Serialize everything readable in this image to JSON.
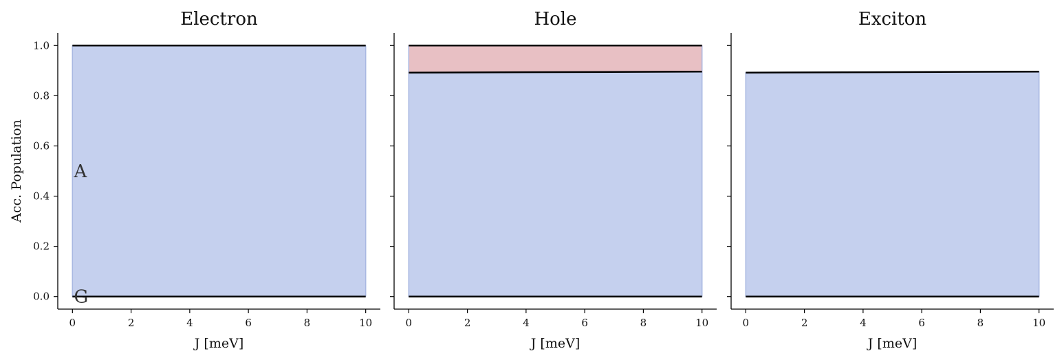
{
  "chart_data": [
    {
      "type": "area",
      "title": "Electron",
      "xlabel": "J [meV]",
      "ylabel": "Acc. Population",
      "xlim": [
        -0.5,
        10.5
      ],
      "ylim": [
        -0.05,
        1.05
      ],
      "xticks": [
        "0",
        "2",
        "4",
        "6",
        "8",
        "10"
      ],
      "yticks": [
        "0.0",
        "0.2",
        "0.4",
        "0.6",
        "0.8",
        "1.0"
      ],
      "x": [
        0,
        10
      ],
      "boundaries": [
        [
          0,
          0
        ],
        [
          1.0,
          1.0
        ]
      ],
      "bands": [
        {
          "from": 0,
          "to": 1,
          "color": "#c5d0ee"
        }
      ],
      "annotations": [
        {
          "text": "A",
          "x": 0.05,
          "y": 0.5
        },
        {
          "text": "G",
          "x": 0.05,
          "y": 0.0
        }
      ]
    },
    {
      "type": "area",
      "title": "Hole",
      "xlabel": "J [meV]",
      "ylabel": "",
      "xlim": [
        -0.5,
        10.5
      ],
      "ylim": [
        -0.05,
        1.05
      ],
      "xticks": [
        "0",
        "2",
        "4",
        "6",
        "8",
        "10"
      ],
      "yticks": [],
      "x": [
        0,
        10
      ],
      "boundaries": [
        [
          0,
          0
        ],
        [
          0.892,
          0.896
        ],
        [
          1.0,
          1.0
        ]
      ],
      "bands": [
        {
          "from": 0,
          "to": 1,
          "color": "#c5d0ee"
        },
        {
          "from": 1,
          "to": 2,
          "color": "#e8c0c4"
        }
      ],
      "annotations": []
    },
    {
      "type": "area",
      "title": "Exciton",
      "xlabel": "J [meV]",
      "ylabel": "",
      "xlim": [
        -0.5,
        10.5
      ],
      "ylim": [
        -0.05,
        1.05
      ],
      "xticks": [
        "0",
        "2",
        "4",
        "6",
        "8",
        "10"
      ],
      "yticks": [],
      "x": [
        0,
        10
      ],
      "boundaries": [
        [
          0,
          0
        ],
        [
          0.892,
          0.896
        ]
      ],
      "bands": [
        {
          "from": 0,
          "to": 1,
          "color": "#c5d0ee"
        }
      ],
      "annotations": []
    }
  ]
}
